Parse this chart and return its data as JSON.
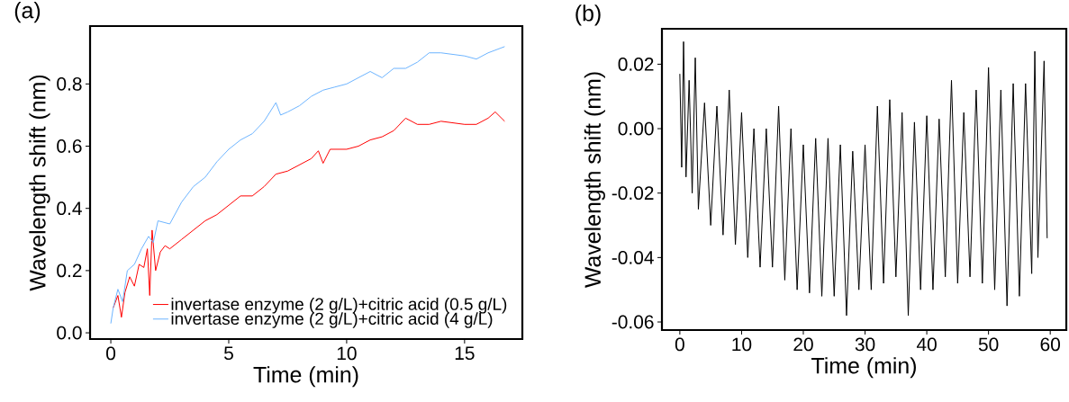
{
  "chart_data": [
    {
      "type": "line",
      "xlabel": "Time (min)",
      "ylabel": "Wavelength shift (nm)",
      "annotations": [
        "(a)"
      ],
      "xlim": [
        -0.88,
        17.45
      ],
      "ylim": [
        -0.02,
        0.986
      ],
      "xticks": [
        0,
        5,
        10,
        15
      ],
      "yticks": [
        {
          "value": 0,
          "label": "0.0"
        },
        {
          "value": 0.2,
          "label": "0.2"
        },
        {
          "value": 0.4,
          "label": "0.4"
        },
        {
          "value": 0.6,
          "label": "0.6"
        },
        {
          "value": 0.8,
          "label": "0.8"
        }
      ],
      "legend": "bottom right",
      "grid": false,
      "marker": "none",
      "series": [
        {
          "name": "invertase enzyme (2 g/L)+citric acid (0.5 g/L)",
          "color": "#ff0000",
          "x": [
            0.1,
            0.3,
            0.45,
            0.6,
            0.8,
            1.0,
            1.2,
            1.4,
            1.55,
            1.65,
            1.75,
            1.9,
            2.1,
            2.3,
            2.5,
            3,
            3.5,
            4,
            4.5,
            5,
            5.5,
            6,
            6.5,
            7,
            7.5,
            8,
            8.5,
            8.8,
            9.0,
            9.3,
            10,
            10.5,
            11,
            11.5,
            12,
            12.5,
            13,
            13.5,
            14,
            15,
            15.5,
            16,
            16.3,
            16.7
          ],
          "values": [
            0.08,
            0.12,
            0.05,
            0.13,
            0.18,
            0.15,
            0.22,
            0.21,
            0.27,
            0.12,
            0.33,
            0.2,
            0.26,
            0.28,
            0.27,
            0.3,
            0.33,
            0.36,
            0.38,
            0.41,
            0.44,
            0.44,
            0.47,
            0.51,
            0.52,
            0.54,
            0.56,
            0.585,
            0.545,
            0.59,
            0.59,
            0.6,
            0.62,
            0.63,
            0.65,
            0.69,
            0.67,
            0.67,
            0.68,
            0.67,
            0.67,
            0.69,
            0.71,
            0.68
          ]
        },
        {
          "name": "invertase enzyme (2 g/L)+citric acid (4 g/L)",
          "color": "#6cb4ff",
          "x": [
            0,
            0.1,
            0.3,
            0.5,
            0.7,
            1,
            1.3,
            1.6,
            1.8,
            2,
            2.5,
            3,
            3.5,
            4,
            4.5,
            5,
            5.5,
            6,
            6.5,
            7,
            7.2,
            7.5,
            8,
            8.5,
            9,
            9.5,
            10,
            10.5,
            11,
            11.5,
            12,
            12.5,
            13,
            13.5,
            14,
            15,
            15.5,
            16,
            16.7
          ],
          "values": [
            0.03,
            0.08,
            0.14,
            0.1,
            0.2,
            0.22,
            0.27,
            0.31,
            0.29,
            0.36,
            0.35,
            0.42,
            0.47,
            0.5,
            0.55,
            0.59,
            0.62,
            0.64,
            0.68,
            0.74,
            0.7,
            0.71,
            0.73,
            0.76,
            0.78,
            0.79,
            0.8,
            0.82,
            0.84,
            0.82,
            0.85,
            0.85,
            0.87,
            0.9,
            0.9,
            0.89,
            0.88,
            0.9,
            0.92
          ]
        }
      ]
    },
    {
      "type": "line",
      "xlabel": "Time (min)",
      "ylabel": "Wavelength shift (nm)",
      "annotations": [
        "(b)"
      ],
      "xlim": [
        -2.9,
        62.6
      ],
      "ylim": [
        -0.0625,
        0.031
      ],
      "xticks": [
        0,
        10,
        20,
        30,
        40,
        50,
        60
      ],
      "yticks": [
        {
          "value": 0.02,
          "label": "0.02"
        },
        {
          "value": 0,
          "label": "0.00"
        },
        {
          "value": -0.02,
          "label": "-0.02"
        },
        {
          "value": -0.04,
          "label": "-0.04"
        },
        {
          "value": -0.06,
          "label": "-0.06"
        }
      ],
      "legend": false,
      "grid": false,
      "marker": "none",
      "series": [
        {
          "color": "#000000",
          "x": [
            0,
            0.3,
            0.6,
            1,
            1.5,
            2,
            2.5,
            3,
            4,
            5,
            6,
            7,
            8,
            9,
            10,
            11,
            12,
            13,
            14,
            15,
            16,
            17,
            18,
            19,
            20,
            21,
            22,
            23,
            24,
            25,
            26,
            27,
            28,
            29,
            30,
            31,
            32,
            33,
            34,
            35,
            36,
            37,
            38,
            39,
            40,
            41,
            42,
            43,
            44,
            45,
            46,
            47,
            48,
            49,
            50,
            51,
            52,
            53,
            54,
            55,
            56,
            57,
            57.5,
            58,
            59,
            59.5
          ],
          "values": [
            0.017,
            -0.012,
            0.027,
            -0.015,
            0.015,
            -0.02,
            0.022,
            -0.025,
            0.008,
            -0.03,
            0.007,
            -0.033,
            0.012,
            -0.036,
            0.005,
            -0.04,
            0.0,
            -0.043,
            0.0,
            -0.043,
            0.007,
            -0.047,
            0.0,
            -0.05,
            -0.005,
            -0.051,
            -0.003,
            -0.052,
            -0.003,
            -0.052,
            -0.005,
            -0.058,
            -0.007,
            -0.05,
            -0.005,
            -0.05,
            0.007,
            -0.048,
            0.009,
            -0.046,
            0.005,
            -0.058,
            0.002,
            -0.05,
            0.004,
            -0.05,
            0.003,
            -0.046,
            0.015,
            -0.048,
            0.005,
            -0.046,
            0.012,
            -0.048,
            0.019,
            -0.05,
            0.012,
            -0.055,
            0.014,
            -0.052,
            0.014,
            -0.045,
            0.024,
            -0.04,
            0.021,
            -0.034
          ]
        }
      ]
    }
  ]
}
